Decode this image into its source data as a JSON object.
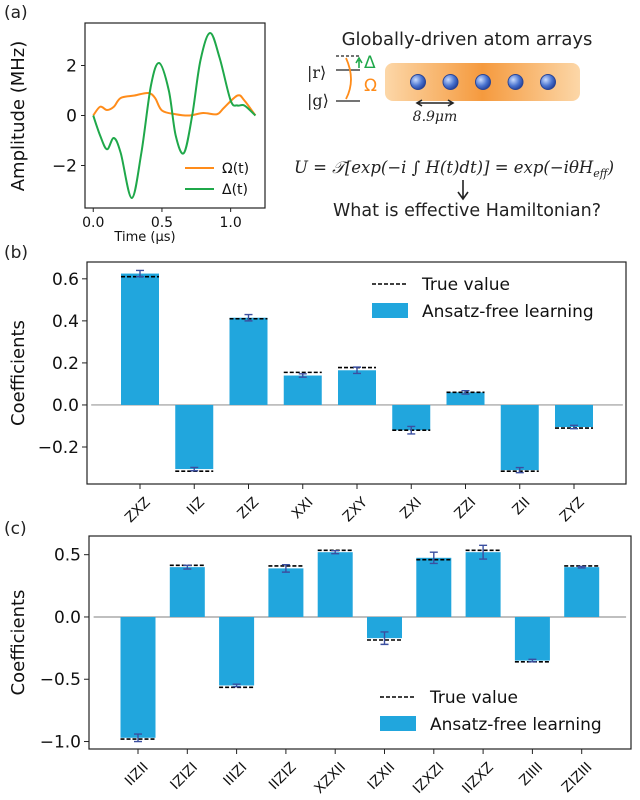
{
  "panels": {
    "a": "(a)",
    "b": "(b)",
    "c": "(c)"
  },
  "schematic": {
    "title": "Globally-driven atom arrays",
    "level_r": "|r⟩",
    "level_g": "|g⟩",
    "delta_symbol": "Δ",
    "omega_symbol": "Ω",
    "spacing": "8.9μm",
    "equation": "U = 𝒯[exp(−i ∫ H(t)dt)] = exp(−iθH",
    "equation_sub": "eff",
    "equation_end": ")",
    "question": "What is effective Hamiltonian?",
    "atom_count": 5,
    "colors": {
      "omega": "#ff8c1a",
      "delta": "#1fa84a",
      "atom": "#3f67c4",
      "beam": "#f7a552"
    }
  },
  "chart_data": [
    {
      "type": "line",
      "xlabel": "Time (μs)",
      "ylabel": "Amplitude (MHz)",
      "xlim": [
        -0.06,
        1.25
      ],
      "ylim": [
        -3.7,
        3.7
      ],
      "xticks": [
        "0.0",
        "0.5",
        "1.0"
      ],
      "xtick_values": [
        0,
        0.5,
        1.0
      ],
      "yticks": [
        "−2",
        "0",
        "2"
      ],
      "ytick_values": [
        -2,
        0,
        2
      ],
      "grid": false,
      "legend": "bottom-right",
      "series": [
        {
          "name": "Ω(t)",
          "color": "#ff8c1a",
          "x": [
            0,
            0.05,
            0.1,
            0.15,
            0.2,
            0.3,
            0.4,
            0.45,
            0.5,
            0.6,
            0.7,
            0.8,
            0.9,
            0.95,
            1.05,
            1.1,
            1.18
          ],
          "y": [
            0,
            0.35,
            0.22,
            0.35,
            0.7,
            0.8,
            0.9,
            0.7,
            0.2,
            0.05,
            0,
            0.1,
            0.05,
            0.3,
            0.8,
            0.6,
            0
          ]
        },
        {
          "name": "Δ(t)",
          "color": "#1fa84a",
          "x": [
            0,
            0.05,
            0.1,
            0.15,
            0.2,
            0.28,
            0.35,
            0.42,
            0.48,
            0.55,
            0.6,
            0.66,
            0.72,
            0.78,
            0.85,
            0.92,
            1.0,
            1.05,
            1.1,
            1.18
          ],
          "y": [
            0,
            -0.8,
            -1.35,
            -0.9,
            -1.5,
            -3.3,
            -1.5,
            1.2,
            2.1,
            1.0,
            -0.8,
            -1.5,
            0,
            2.2,
            3.3,
            2.3,
            0.6,
            0.4,
            0.4,
            0
          ]
        }
      ]
    },
    {
      "type": "bar",
      "ylabel": "Coefficients",
      "ylim": [
        -0.376,
        0.68
      ],
      "yticks": [
        "−0.2",
        "0.0",
        "0.2",
        "0.4",
        "0.6"
      ],
      "ytick_values": [
        -0.2,
        0,
        0.2,
        0.4,
        0.6
      ],
      "legend": "top-right",
      "categories": [
        "ZXZ",
        "IIZ",
        "ZIZ",
        "XXI",
        "ZXY",
        "ZXI",
        "ZZI",
        "ZII",
        "ZYZ"
      ],
      "series": [
        {
          "name": "Ansatz-free learning",
          "color": "#21a6dd",
          "values": [
            0.625,
            -0.305,
            0.415,
            0.14,
            0.165,
            -0.12,
            0.06,
            -0.31,
            -0.105
          ],
          "errors": [
            0.015,
            0.008,
            0.015,
            0.008,
            0.015,
            0.018,
            0.008,
            0.012,
            0.008
          ]
        },
        {
          "name": "True value",
          "style": "dashed",
          "color": "#000000",
          "values": [
            0.61,
            -0.315,
            0.41,
            0.155,
            0.178,
            -0.12,
            0.06,
            -0.315,
            -0.11
          ]
        }
      ],
      "error_color": "#3b4fa0"
    },
    {
      "type": "bar",
      "ylabel": "Coefficients",
      "ylim": [
        -1.06,
        0.65
      ],
      "yticks": [
        "−1.0",
        "−0.5",
        "0.0",
        "0.5"
      ],
      "ytick_values": [
        -1.0,
        -0.5,
        0,
        0.5
      ],
      "legend": "bottom-right",
      "categories": [
        "IIZII",
        "IZIZI",
        "IIIZI",
        "IIZIZ",
        "XZXII",
        "IZXII",
        "IZXZI",
        "IIZXZ",
        "ZIIII",
        "ZIZIII"
      ],
      "series": [
        {
          "name": "Ansatz-free learning",
          "color": "#21a6dd",
          "values": [
            -0.97,
            0.4,
            -0.55,
            0.39,
            0.52,
            -0.17,
            0.475,
            0.52,
            -0.35,
            0.4
          ],
          "errors": [
            0.03,
            0.015,
            0.01,
            0.03,
            0.012,
            0.05,
            0.045,
            0.055,
            0.01,
            0.006
          ]
        },
        {
          "name": "True value",
          "style": "dashed",
          "color": "#000000",
          "values": [
            -0.98,
            0.415,
            -0.565,
            0.41,
            0.535,
            -0.185,
            0.46,
            0.535,
            -0.36,
            0.41
          ]
        }
      ],
      "error_color": "#3b4fa0"
    }
  ]
}
